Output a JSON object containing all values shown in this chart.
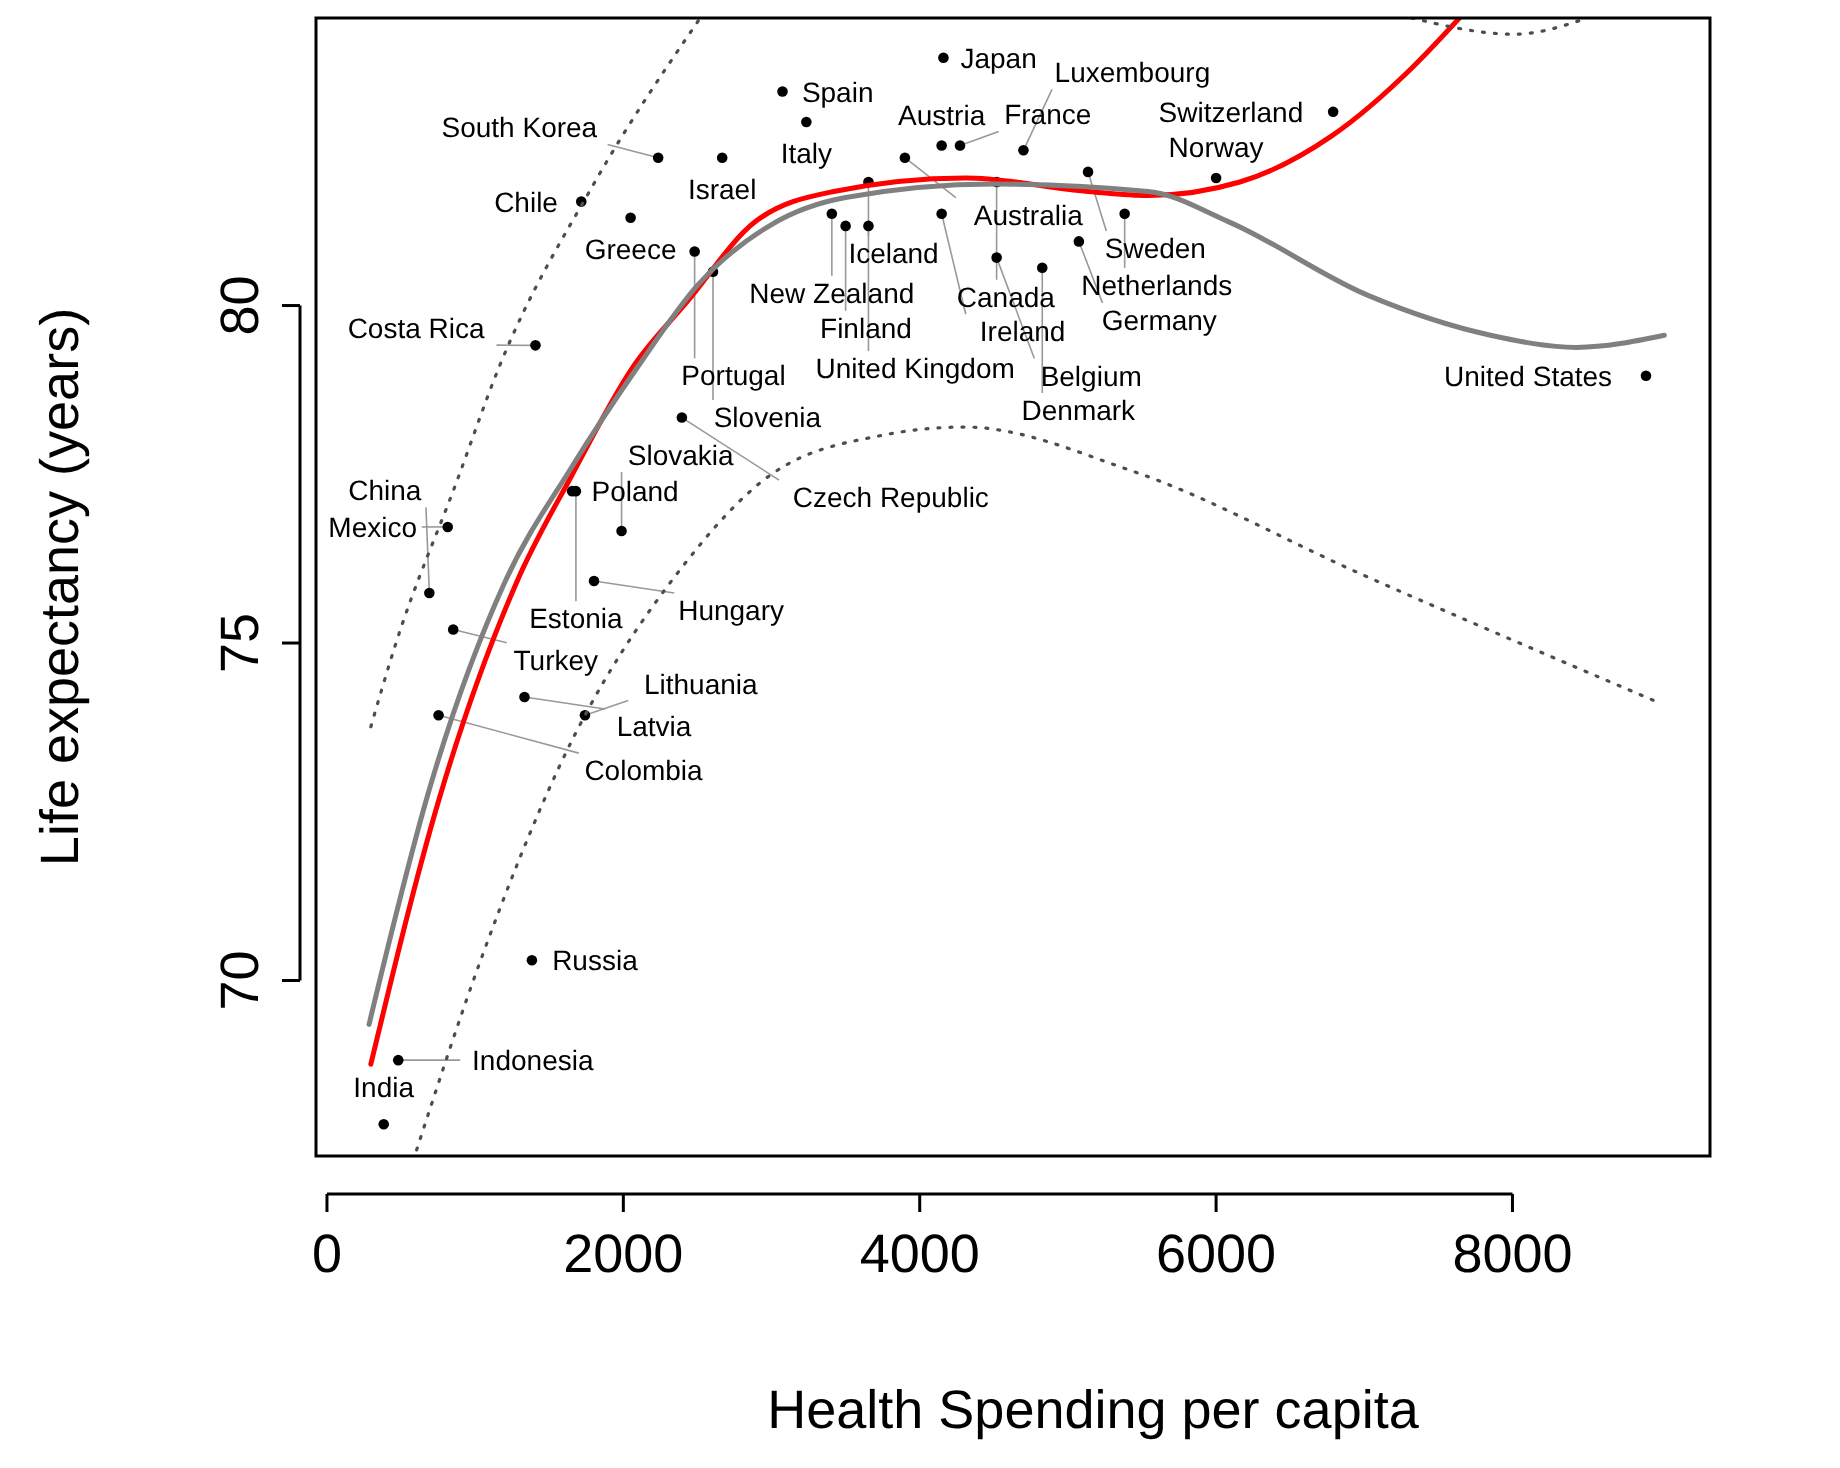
{
  "chart_data": {
    "type": "scatter",
    "xlabel": "Health Spending per capita",
    "ylabel": "Life expectancy (years)",
    "xlim": [
      -74,
      9333
    ],
    "ylim": [
      67.4,
      84.26
    ],
    "xticks": [
      0,
      2000,
      4000,
      6000,
      8000
    ],
    "yticks": [
      70,
      75,
      80
    ],
    "series": [
      {
        "marker": "circle",
        "color": "#000000",
        "x": [
          4160,
          3074,
          3235,
          6790,
          2235,
          2667,
          4148,
          4272,
          4700,
          3900,
          3654,
          4519,
          5136,
          6000,
          1716,
          2049,
          3407,
          3500,
          4148,
          3654,
          5383,
          5074,
          4519,
          4827,
          2481,
          2605,
          8901,
          1407,
          2395,
          1654,
          1680,
          815,
          1988,
          1802,
          691,
          852,
          1333,
          753,
          1741,
          1383,
          481,
          383
        ],
        "values": [
          83.67,
          83.17,
          82.72,
          82.87,
          82.19,
          82.19,
          82.37,
          82.37,
          82.3,
          82.19,
          81.83,
          81.83,
          81.98,
          81.89,
          81.54,
          81.3,
          81.36,
          81.18,
          81.36,
          81.18,
          81.36,
          80.95,
          80.71,
          80.56,
          80.8,
          80.5,
          78.96,
          79.41,
          78.34,
          77.25,
          77.25,
          76.72,
          76.66,
          75.92,
          75.74,
          75.2,
          74.2,
          73.93,
          73.93,
          70.3,
          68.82,
          67.87
        ],
        "value_labels": [
          "Japan",
          "Spain",
          "Italy",
          "Switzerland",
          "South Korea",
          "Israel",
          "Austria",
          "France",
          "Luxembourg",
          "Australia",
          "Iceland",
          "Canada",
          "Sweden",
          "Norway",
          "Chile",
          "Greece",
          "New Zealand",
          "Finland",
          "Ireland",
          "United Kingdom",
          "Netherlands",
          "Germany",
          "Belgium",
          "Denmark",
          "Portugal",
          "Slovenia",
          "United States",
          "Costa Rica",
          "Czech Republic",
          "Poland",
          "Estonia",
          "Mexico",
          "Slovakia",
          "Hungary",
          "China",
          "Turkey",
          "Latvia",
          "Colombia",
          "Lithuania",
          "Russia",
          "Indonesia",
          "India"
        ]
      },
      {
        "type": "line",
        "color": "#ff0000",
        "line_style": "solid",
        "x": [
          296,
          753,
          1284,
          1654,
          2062,
          2432,
          2889,
          3420,
          4309,
          5136,
          5543,
          6160,
          6778,
          7321,
          7642
        ],
        "values": [
          68.76,
          72.66,
          75.92,
          77.49,
          79.08,
          80.06,
          81.24,
          81.69,
          81.89,
          81.69,
          81.63,
          81.83,
          82.51,
          83.52,
          84.26
        ]
      },
      {
        "type": "line",
        "color": "#808080",
        "line_style": "solid",
        "x": [
          284,
          700,
          1200,
          1650,
          2100,
          2500,
          3000,
          3500,
          4500,
          5543,
          6086,
          7025,
          7852,
          8432,
          9025
        ],
        "values": [
          69.35,
          72.9,
          75.9,
          77.6,
          79.1,
          80.3,
          81.2,
          81.6,
          81.8,
          81.69,
          81.24,
          80.15,
          79.56,
          79.38,
          79.56
        ]
      },
      {
        "type": "line",
        "color": "#4d4d4d",
        "line_style": "dotted",
        "x": [
          605,
          1037,
          1568,
          2395,
          3000,
          3753,
          4300,
          5444,
          7000,
          8963
        ],
        "values": [
          67.49,
          70.3,
          73.17,
          76.12,
          77.5,
          78.08,
          78.2,
          77.54,
          76.0,
          74.14
        ]
      },
      {
        "type": "line",
        "color": "#4d4d4d",
        "line_style": "dotted",
        "x": [
          296,
          457,
          877,
          1160,
          1800,
          2519,
          5000,
          7321,
          8012,
          8506
        ],
        "values": [
          73.76,
          74.94,
          77.4,
          79.08,
          81.8,
          84.26,
          null,
          84.26,
          84.02,
          84.26
        ]
      }
    ]
  }
}
